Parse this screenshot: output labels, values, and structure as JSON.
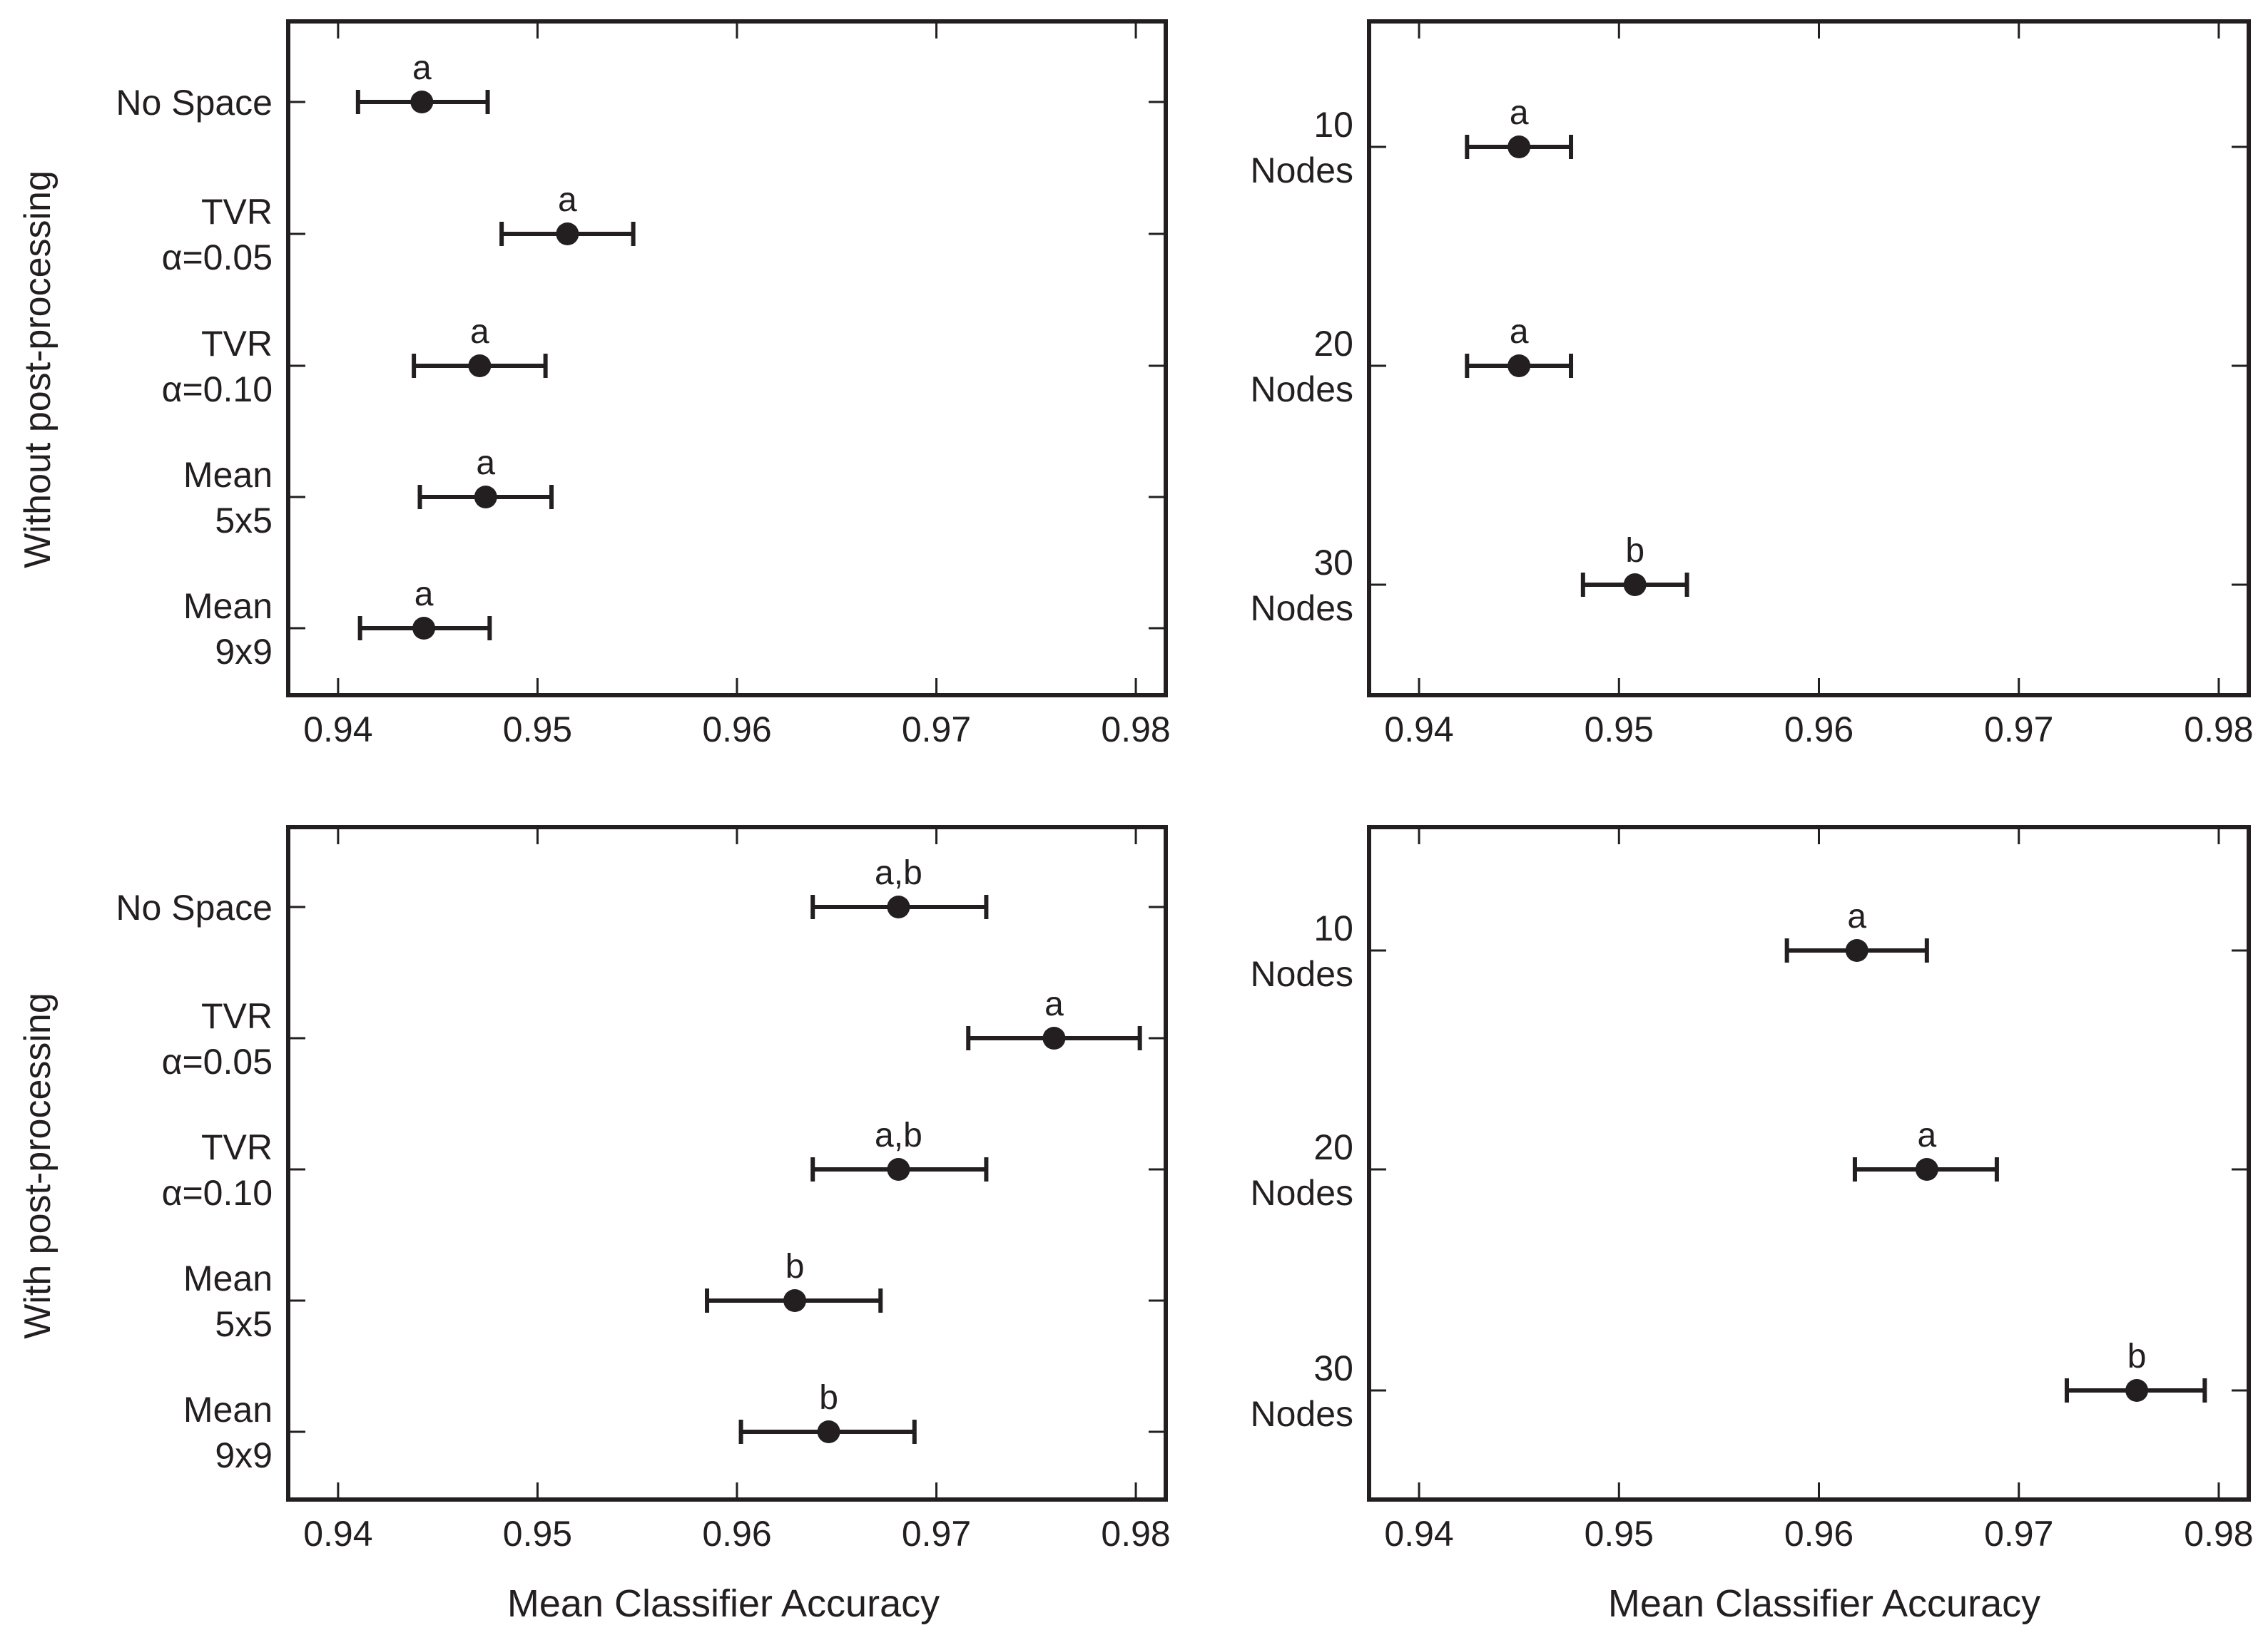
{
  "figure": {
    "row_labels": [
      "Without post-processing",
      "With post-processing"
    ],
    "xlabel": "Mean Classifier Accuracy"
  },
  "chart_data": [
    {
      "type": "scatter",
      "panel": "top-left",
      "row_label": "Without post-processing",
      "xlabel": "",
      "xlim": [
        0.9375,
        0.9815
      ],
      "xticks": [
        0.94,
        0.95,
        0.96,
        0.97,
        0.98
      ],
      "xtick_labels": [
        "0.94",
        "0.95",
        "0.96",
        "0.97",
        "0.98"
      ],
      "points": [
        {
          "label": [
            "No Space"
          ],
          "mean": 0.9442,
          "lo": 0.941,
          "hi": 0.9475,
          "letter": "a"
        },
        {
          "label": [
            "TVR",
            "α=0.05"
          ],
          "mean": 0.9515,
          "lo": 0.9482,
          "hi": 0.9548,
          "letter": "a"
        },
        {
          "label": [
            "TVR",
            "α=0.10"
          ],
          "mean": 0.9471,
          "lo": 0.9438,
          "hi": 0.9504,
          "letter": "a"
        },
        {
          "label": [
            "Mean",
            "5x5"
          ],
          "mean": 0.9474,
          "lo": 0.9441,
          "hi": 0.9507,
          "letter": "a"
        },
        {
          "label": [
            "Mean",
            "9x9"
          ],
          "mean": 0.9443,
          "lo": 0.9411,
          "hi": 0.9476,
          "letter": "a"
        }
      ]
    },
    {
      "type": "scatter",
      "panel": "top-right",
      "row_label": "",
      "xlabel": "",
      "xlim": [
        0.9375,
        0.9815
      ],
      "xticks": [
        0.94,
        0.95,
        0.96,
        0.97,
        0.98
      ],
      "xtick_labels": [
        "0.94",
        "0.95",
        "0.96",
        "0.97",
        "0.98"
      ],
      "points": [
        {
          "label": [
            "10",
            "Nodes"
          ],
          "mean": 0.945,
          "lo": 0.9424,
          "hi": 0.9476,
          "letter": "a"
        },
        {
          "label": [
            "20",
            "Nodes"
          ],
          "mean": 0.945,
          "lo": 0.9424,
          "hi": 0.9476,
          "letter": "a"
        },
        {
          "label": [
            "30",
            "Nodes"
          ],
          "mean": 0.9508,
          "lo": 0.9482,
          "hi": 0.9534,
          "letter": "b"
        }
      ]
    },
    {
      "type": "scatter",
      "panel": "bottom-left",
      "row_label": "With post-processing",
      "xlabel": "Mean Classifier Accuracy",
      "xlim": [
        0.9375,
        0.9815
      ],
      "xticks": [
        0.94,
        0.95,
        0.96,
        0.97,
        0.98
      ],
      "xtick_labels": [
        "0.94",
        "0.95",
        "0.96",
        "0.97",
        "0.98"
      ],
      "points": [
        {
          "label": [
            "No Space"
          ],
          "mean": 0.9681,
          "lo": 0.9638,
          "hi": 0.9725,
          "letter": "a,b"
        },
        {
          "label": [
            "TVR",
            "α=0.05"
          ],
          "mean": 0.9759,
          "lo": 0.9716,
          "hi": 0.9802,
          "letter": "a"
        },
        {
          "label": [
            "TVR",
            "α=0.10"
          ],
          "mean": 0.9681,
          "lo": 0.9638,
          "hi": 0.9725,
          "letter": "a,b"
        },
        {
          "label": [
            "Mean",
            "5x5"
          ],
          "mean": 0.9629,
          "lo": 0.9585,
          "hi": 0.9672,
          "letter": "b"
        },
        {
          "label": [
            "Mean",
            "9x9"
          ],
          "mean": 0.9646,
          "lo": 0.9602,
          "hi": 0.9689,
          "letter": "b"
        }
      ]
    },
    {
      "type": "scatter",
      "panel": "bottom-right",
      "row_label": "",
      "xlabel": "Mean Classifier Accuracy",
      "xlim": [
        0.9375,
        0.9815
      ],
      "xticks": [
        0.94,
        0.95,
        0.96,
        0.97,
        0.98
      ],
      "xtick_labels": [
        "0.94",
        "0.95",
        "0.96",
        "0.97",
        "0.98"
      ],
      "points": [
        {
          "label": [
            "10",
            "Nodes"
          ],
          "mean": 0.9619,
          "lo": 0.9584,
          "hi": 0.9654,
          "letter": "a"
        },
        {
          "label": [
            "20",
            "Nodes"
          ],
          "mean": 0.9654,
          "lo": 0.9618,
          "hi": 0.9689,
          "letter": "a"
        },
        {
          "label": [
            "30",
            "Nodes"
          ],
          "mean": 0.9759,
          "lo": 0.9724,
          "hi": 0.9793,
          "letter": "b"
        }
      ]
    }
  ]
}
